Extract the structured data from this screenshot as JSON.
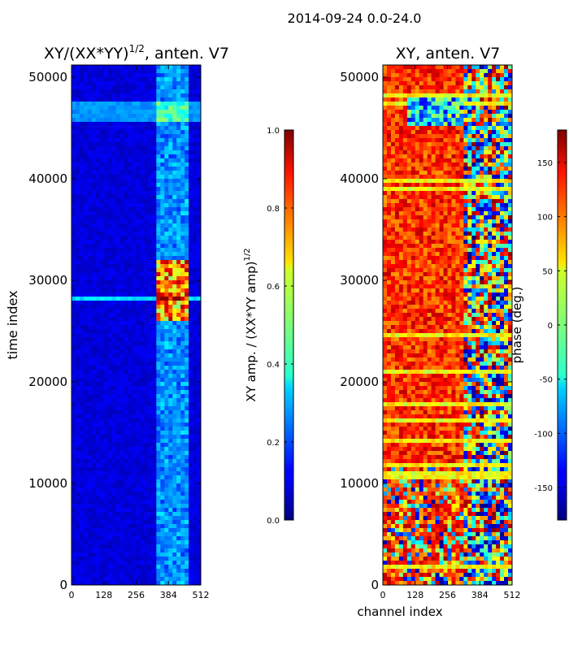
{
  "figure": {
    "suptitle": "2014-09-24 0.0-24.0"
  },
  "chart_data": [
    {
      "type": "heatmap",
      "title": "XY/(XX*YY)",
      "title_exponent": "1/2",
      "title_suffix": ", anten. V7",
      "xlabel": "",
      "ylabel": "time index",
      "xlim": [
        0,
        512
      ],
      "ylim": [
        0,
        51200
      ],
      "x_ticks": [
        0,
        128,
        256,
        384,
        512
      ],
      "y_ticks": [
        0,
        10000,
        20000,
        30000,
        40000,
        50000
      ],
      "colormap": "jet",
      "colorbar": {
        "label": "XY amp. / (XX*YY amp)",
        "label_exponent": "1/2",
        "range": [
          0.0,
          1.0
        ],
        "ticks": [
          "0.0",
          "0.2",
          "0.4",
          "0.6",
          "0.8",
          "1.0"
        ]
      }
    },
    {
      "type": "heatmap",
      "title": "XY, anten. V7",
      "xlabel": "channel index",
      "ylabel": "",
      "xlim": [
        0,
        512
      ],
      "ylim": [
        0,
        51200
      ],
      "x_ticks": [
        0,
        128,
        256,
        384,
        512
      ],
      "y_ticks": [
        0,
        10000,
        20000,
        30000,
        40000,
        50000
      ],
      "colormap": "jet",
      "colorbar": {
        "label": "phase (deg.)",
        "range": [
          -180,
          180
        ],
        "ticks": [
          -150,
          -100,
          -50,
          0,
          50,
          100,
          150
        ]
      }
    }
  ]
}
